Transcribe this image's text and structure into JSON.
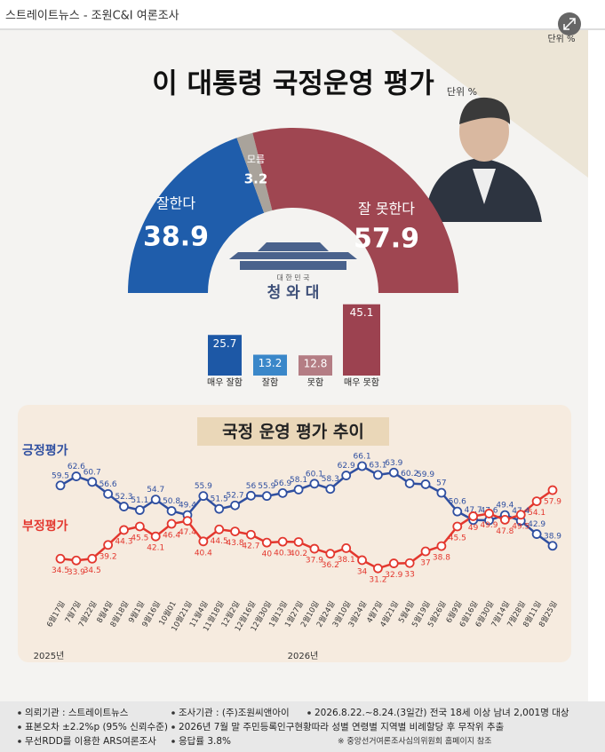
{
  "header": {
    "source": "스트레이트뉴스 - 조원C&I 여론조사",
    "unit_top": "단위 %"
  },
  "title": "이 대통령 국정운영 평가",
  "unit": "단위 %",
  "emblem": {
    "small": "대 한 민 국",
    "big": "청 와 대"
  },
  "chart_data": [
    {
      "type": "donut",
      "categories": [
        "잘한다",
        "모름",
        "잘 못한다"
      ],
      "values": [
        38.9,
        3.2,
        57.9
      ],
      "colors": [
        "#1f5dab",
        "#a9a39b",
        "#9f4651"
      ]
    },
    {
      "type": "bar",
      "categories": [
        "매우 잘함",
        "잘함",
        "못함",
        "매우 못함"
      ],
      "values": [
        25.7,
        13.2,
        12.8,
        45.1
      ],
      "colors": [
        "#1d58a6",
        "#3a87c9",
        "#b47d84",
        "#9c4250"
      ]
    },
    {
      "type": "line",
      "title": "국정 운영 평가 추이",
      "categories": [
        "6월17일",
        "7월7일",
        "7월22일",
        "8월4일",
        "8월18일",
        "9월1일",
        "9월16일",
        "10월01",
        "10월21일",
        "11월4일",
        "11월18일",
        "12월2일",
        "12월16일",
        "12월30일",
        "1월13일",
        "1월27일",
        "2월10일",
        "2월24일",
        "3월10일",
        "3월24일",
        "4월7일",
        "4월21일",
        "5월4일",
        "5월19일",
        "5월26일",
        "6월9일",
        "6월16일",
        "6월30일",
        "7월14일",
        "7월28일",
        "8월11일",
        "8월25일"
      ],
      "years": [
        "2025년",
        "2026년"
      ],
      "series": [
        {
          "name": "긍정평가",
          "color": "#2f4fa0",
          "values": [
            59.5,
            62.6,
            60.7,
            56.6,
            52.3,
            51.1,
            54.7,
            50.8,
            49.4,
            55.9,
            51.5,
            52.7,
            56.0,
            55.9,
            56.9,
            58.1,
            60.1,
            58.3,
            62.9,
            66.1,
            63.1,
            63.9,
            60.2,
            59.9,
            57.0,
            50.6,
            47.7,
            47.6,
            49.4,
            47.4,
            42.9,
            38.9
          ]
        },
        {
          "name": "부정평가",
          "color": "#e3372e",
          "values": [
            34.5,
            33.9,
            34.5,
            39.2,
            44.3,
            45.5,
            42.1,
            46.4,
            47.4,
            40.4,
            44.5,
            43.8,
            42.7,
            40.0,
            40.3,
            40.2,
            37.9,
            36.2,
            38.1,
            34.0,
            31.2,
            32.9,
            33.0,
            37.0,
            38.8,
            45.5,
            49.0,
            49.9,
            47.8,
            49.5,
            54.1,
            57.9
          ]
        }
      ]
    }
  ],
  "footer": {
    "rows": [
      [
        "의뢰기관 : 스트레이트뉴스",
        "조사기관 : (주)조원씨앤아이",
        "2026.8.22.~8.24.(3일간) 전국 18세 이상 남녀 2,001명 대상"
      ],
      [
        "표본오차 ±2.2%p (95% 신뢰수준)",
        "2026년 7월 말 주민등록인구현황따라 성별 연령별 지역별 비례할당 후 무작위 추출"
      ],
      [
        "무선RDD를 이용한 ARS여론조사",
        "응답률 3.8%"
      ]
    ],
    "note": "※ 중앙선거여론조사심의위원회 홈페이지 참조"
  }
}
